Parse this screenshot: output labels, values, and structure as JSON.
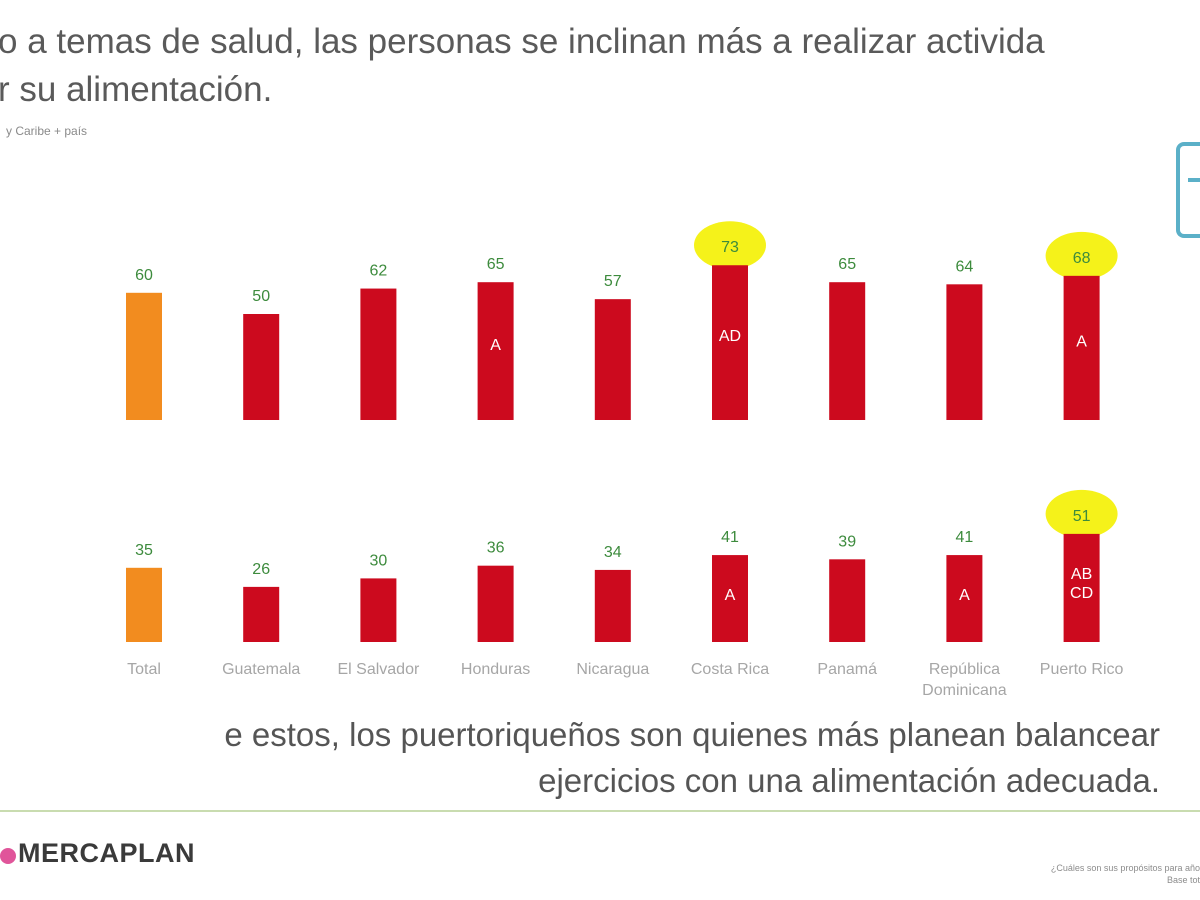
{
  "header": {
    "title_line1": "o a temas de salud, las personas se inclinan más a realizar activida",
    "title_line2": "r su alimentación.",
    "subtitle": "y Caribe + país"
  },
  "colors": {
    "total_bar": "#f28c1f",
    "country_bar": "#cc0a1e",
    "highlight": "#f5f21a"
  },
  "chart_data": {
    "type": "bar",
    "categories": [
      "Total",
      "Guatemala",
      "El Salvador",
      "Honduras",
      "Nicaragua",
      "Costa Rica",
      "Panamá",
      "República Dominicana",
      "Puerto Rico"
    ],
    "category_lines": [
      [
        "Total"
      ],
      [
        "Guatemala"
      ],
      [
        "El Salvador"
      ],
      [
        "Honduras"
      ],
      [
        "Nicaragua"
      ],
      [
        "Costa Rica"
      ],
      [
        "Panamá"
      ],
      [
        "República",
        "Dominicana"
      ],
      [
        "Puerto Rico"
      ]
    ],
    "panels": [
      {
        "values": [
          60,
          50,
          62,
          65,
          57,
          73,
          65,
          64,
          68
        ],
        "significance": [
          "",
          "",
          "",
          "A",
          "",
          "AD",
          "",
          "",
          "A"
        ],
        "highlighted": [
          5,
          8
        ]
      },
      {
        "values": [
          35,
          26,
          30,
          36,
          34,
          41,
          39,
          41,
          51
        ],
        "significance": [
          "",
          "",
          "",
          "",
          "",
          "A",
          "",
          "A",
          "AB\nCD"
        ],
        "highlighted": [
          8
        ]
      }
    ]
  },
  "footer": {
    "takeaway_line1": "e estos, los puertoriqueños son quienes más planean balancear",
    "takeaway_line2": "ejercicios con una alimentación adecuada.",
    "brand": "MERCAPLAN",
    "source_line1": "¿Cuáles son sus propósitos para año",
    "source_line2": "Base tot"
  }
}
